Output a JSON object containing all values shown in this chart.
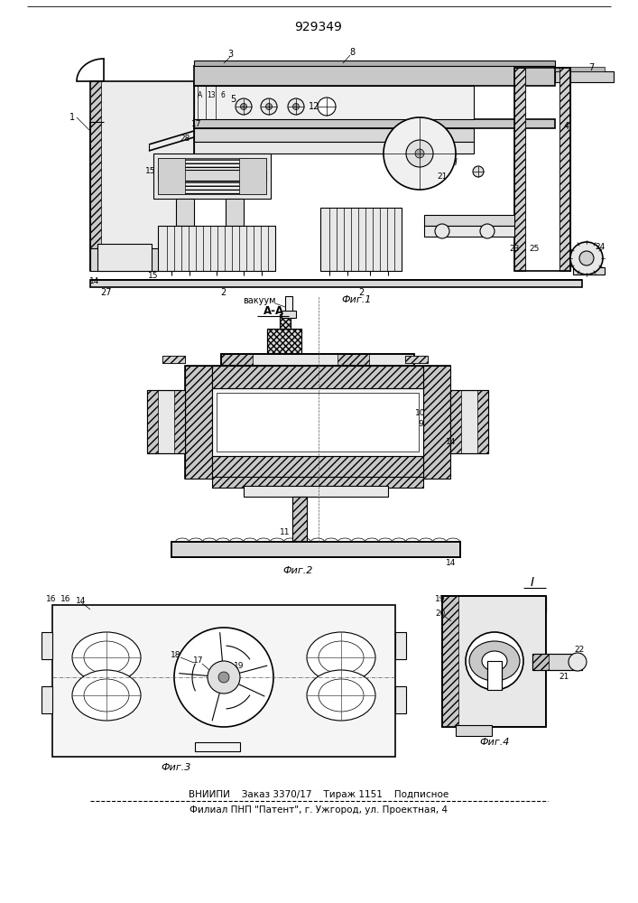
{
  "patent_number": "929349",
  "bg": "#ffffff",
  "lc": "#000000",
  "bottom_line1": "ВНИИПИ    Заказ 3370/17    Тираж 1151    Подписное",
  "bottom_line2": "Филиал ПНП \"Патент\", г. Ужгород, ул. Проектная, 4",
  "fig1_label": "Фиг.1",
  "fig2_label": "Фиг.2",
  "fig3_label": "Фиг.3",
  "fig4_label": "Фиг.4",
  "aa_label": "А-А",
  "vakuum_label": "вакуум"
}
